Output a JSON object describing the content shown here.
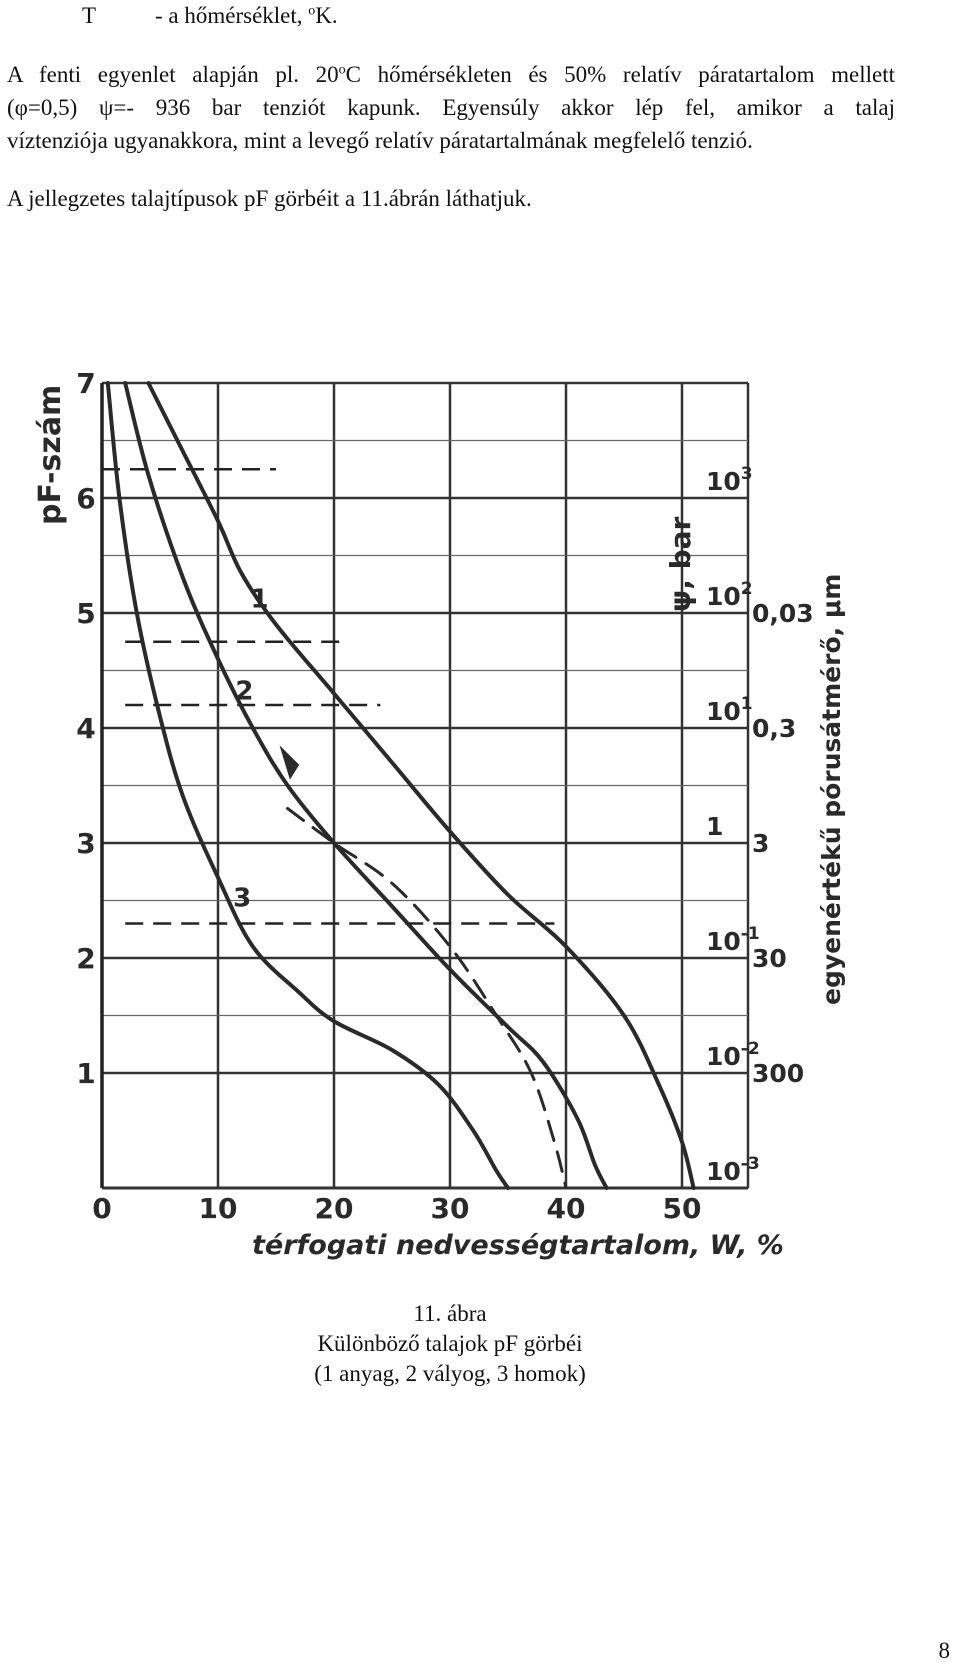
{
  "text": {
    "line_T_symbol": "T",
    "line_T_desc_pre": "- a hőmérséklet, ",
    "line_T_sup": "o",
    "line_T_desc_post": "K.",
    "p1_line1_pre": "A fenti egyenlet alapján pl. 20",
    "p1_line1_sup1": "o",
    "p1_line1_post": "C hőmérsékleten és 50% relatív páratartalom mellett",
    "p1_line2": "(φ=0,5) ψ=- 936 bar tenziót  kapunk. Egyensúly akkor lép fel, amikor a talaj",
    "p1_line3": "víztenziója ugyanakkora, mint a levegő relatív páratartalmának megfelelő tenzió.",
    "p2": "A jellegzetes talajtípusok pF görbéit a 11.ábrán láthatjuk."
  },
  "figure": {
    "y_axis_title": "pF-szám",
    "x_axis_title": "térfogati nedvességtartalom, W, %",
    "psi_title": "ψ, bar",
    "pore_title": "egyenértékű pórusátmérő, μm",
    "x_ticks": [
      "0",
      "10",
      "20",
      "30",
      "40",
      "50"
    ],
    "y_ticks": [
      "1",
      "2",
      "3",
      "4",
      "5",
      "6",
      "7"
    ],
    "psi_labels": [
      {
        "pF": 6,
        "base": "10",
        "exp": "3"
      },
      {
        "pF": 5,
        "base": "10",
        "exp": "2"
      },
      {
        "pF": 4,
        "base": "10",
        "exp": "1"
      },
      {
        "pF": 3,
        "base": "1",
        "exp": ""
      },
      {
        "pF": 2,
        "base": "10",
        "exp": "-1"
      },
      {
        "pF": 1,
        "base": "10",
        "exp": "-2"
      },
      {
        "pF": 0,
        "base": "10",
        "exp": "-3"
      }
    ],
    "pore_labels": [
      {
        "pF": 5,
        "text": "0,03"
      },
      {
        "pF": 4,
        "text": "0,3"
      },
      {
        "pF": 3,
        "text": "3"
      },
      {
        "pF": 2,
        "text": "30"
      },
      {
        "pF": 1,
        "text": "300"
      }
    ],
    "curve_labels": [
      "1",
      "2",
      "3"
    ]
  },
  "chart_data": {
    "type": "line",
    "xlabel": "térfogati nedvességtartalom, W, %",
    "ylabel": "pF-szám",
    "xlim": [
      0,
      55
    ],
    "ylim": [
      0,
      7
    ],
    "grid": true,
    "series": [
      {
        "name": "1",
        "x": [
          4,
          7,
          10,
          12,
          15,
          20,
          25,
          30,
          35,
          40,
          45,
          48,
          50,
          51
        ],
        "y": [
          7.0,
          6.4,
          5.8,
          5.35,
          4.9,
          4.3,
          3.7,
          3.1,
          2.55,
          2.1,
          1.5,
          0.9,
          0.4,
          0.0
        ]
      },
      {
        "name": "2",
        "x": [
          2,
          4,
          7,
          10,
          13,
          16,
          20,
          25,
          30,
          35,
          38,
          41,
          42.5,
          43.5
        ],
        "y": [
          7.0,
          6.2,
          5.3,
          4.6,
          4.0,
          3.5,
          3.0,
          2.45,
          1.9,
          1.4,
          1.1,
          0.6,
          0.2,
          0.0
        ]
      },
      {
        "name": "3",
        "x": [
          0.5,
          1.5,
          3,
          5,
          7,
          10,
          13,
          17,
          20,
          25,
          29,
          32,
          34,
          35
        ],
        "y": [
          7.0,
          6.0,
          5.0,
          4.1,
          3.4,
          2.7,
          2.1,
          1.7,
          1.45,
          1.2,
          0.9,
          0.5,
          0.15,
          0.0
        ]
      },
      {
        "name": "",
        "x": [
          16,
          20,
          25,
          30,
          34,
          37,
          39,
          40
        ],
        "y": [
          3.3,
          3.0,
          2.65,
          2.1,
          1.5,
          1.0,
          0.4,
          0.0
        ]
      }
    ],
    "reference_levels_pF": [
      6.25,
      4.75,
      4.2,
      2.3
    ]
  },
  "caption": {
    "line1": "11. ábra",
    "line2": "Különböző talajok pF görbéi",
    "line3": "(1 anyag, 2 vályog, 3 homok)"
  },
  "page_number": "8"
}
